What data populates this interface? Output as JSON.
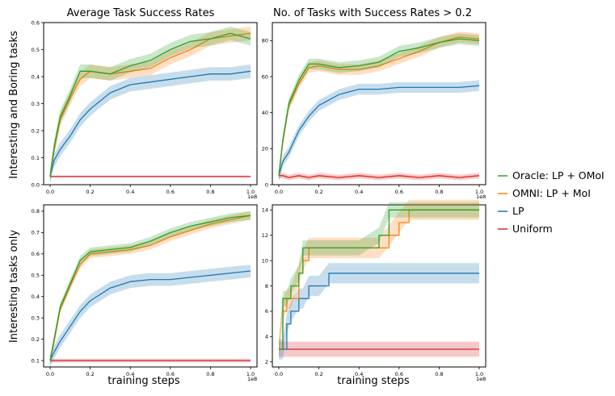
{
  "figure": {
    "column_titles": [
      "Average Task Success Rates",
      "No. of Tasks with Success Rates > 0.2"
    ],
    "row_labels": [
      "Interesting and Boring tasks",
      "Interesting tasks only"
    ],
    "xlabel": "training steps",
    "x_offset_label": "1e8"
  },
  "legend": [
    {
      "name": "Oracle: LP + OMoI",
      "color": "#2ca02c"
    },
    {
      "name": "OMNI: LP + MoI",
      "color": "#ff7f0e"
    },
    {
      "name": "LP",
      "color": "#1f77b4"
    },
    {
      "name": "Uniform",
      "color": "#d62728"
    }
  ],
  "chart_data": [
    {
      "type": "line",
      "title": "Average Task Success Rates",
      "row": "Interesting and Boring tasks",
      "xlim": [
        0,
        1.0
      ],
      "ylim": [
        0.0,
        0.6
      ],
      "xticks": [
        "0.0",
        "0.2",
        "0.4",
        "0.6",
        "0.8",
        "1.0"
      ],
      "yticks": [
        "0.0",
        "0.1",
        "0.2",
        "0.3",
        "0.4",
        "0.5",
        "0.6"
      ],
      "x": [
        0,
        0.02,
        0.05,
        0.1,
        0.15,
        0.2,
        0.3,
        0.4,
        0.5,
        0.6,
        0.7,
        0.8,
        0.9,
        1.0
      ],
      "series": [
        {
          "name": "Oracle: LP + OMoI",
          "color": "#2ca02c",
          "values": [
            0.03,
            0.14,
            0.25,
            0.33,
            0.42,
            0.42,
            0.41,
            0.44,
            0.46,
            0.5,
            0.53,
            0.54,
            0.56,
            0.54
          ],
          "band": 0.025
        },
        {
          "name": "OMNI: LP + MoI",
          "color": "#ff7f0e",
          "values": [
            0.03,
            0.13,
            0.24,
            0.32,
            0.39,
            0.42,
            0.41,
            0.42,
            0.43,
            0.47,
            0.5,
            0.54,
            0.55,
            0.56
          ],
          "band": 0.025
        },
        {
          "name": "LP",
          "color": "#1f77b4",
          "values": [
            0.03,
            0.09,
            0.13,
            0.18,
            0.24,
            0.28,
            0.34,
            0.37,
            0.38,
            0.39,
            0.4,
            0.41,
            0.41,
            0.42
          ],
          "band": 0.025
        },
        {
          "name": "Uniform",
          "color": "#d62728",
          "values": [
            0.03,
            0.03,
            0.03,
            0.03,
            0.03,
            0.03,
            0.03,
            0.03,
            0.03,
            0.03,
            0.03,
            0.03,
            0.03,
            0.03
          ],
          "band": 0.004
        }
      ]
    },
    {
      "type": "line",
      "title": "No. of Tasks with Success Rates > 0.2",
      "row": "Interesting and Boring tasks",
      "xlim": [
        0,
        1.0
      ],
      "ylim": [
        0,
        90
      ],
      "xticks": [
        "0.0",
        "0.2",
        "0.4",
        "0.6",
        "0.8",
        "1.0"
      ],
      "yticks": [
        "0",
        "20",
        "40",
        "60",
        "80"
      ],
      "x": [
        0,
        0.02,
        0.05,
        0.1,
        0.15,
        0.2,
        0.3,
        0.4,
        0.5,
        0.6,
        0.7,
        0.8,
        0.9,
        1.0
      ],
      "series": [
        {
          "name": "Oracle: LP + OMoI",
          "color": "#2ca02c",
          "values": [
            5,
            25,
            45,
            58,
            67,
            67,
            65,
            66,
            68,
            74,
            76,
            79,
            81,
            80
          ],
          "band": 3
        },
        {
          "name": "OMNI: LP + MoI",
          "color": "#ff7f0e",
          "values": [
            5,
            24,
            44,
            56,
            65,
            66,
            64,
            64,
            66,
            70,
            74,
            79,
            82,
            81
          ],
          "band": 3
        },
        {
          "name": "LP",
          "color": "#1f77b4",
          "values": [
            5,
            13,
            18,
            30,
            38,
            44,
            50,
            53,
            53,
            54,
            54,
            54,
            54,
            55
          ],
          "band": 3
        },
        {
          "name": "Uniform",
          "color": "#d62728",
          "values": [
            5,
            5,
            4,
            5,
            4,
            5,
            4,
            5,
            4,
            5,
            4,
            5,
            4,
            5
          ],
          "band": 1.5
        }
      ]
    },
    {
      "type": "line",
      "title": "",
      "row": "Interesting tasks only",
      "xlim": [
        0,
        1.0
      ],
      "ylim": [
        0.07,
        0.83
      ],
      "xticks": [
        "0.0",
        "0.2",
        "0.4",
        "0.6",
        "0.8",
        "1.0"
      ],
      "yticks": [
        "0.1",
        "0.2",
        "0.3",
        "0.4",
        "0.5",
        "0.6",
        "0.7",
        "0.8"
      ],
      "x": [
        0,
        0.02,
        0.05,
        0.1,
        0.15,
        0.2,
        0.3,
        0.4,
        0.5,
        0.6,
        0.7,
        0.8,
        0.9,
        1.0
      ],
      "series": [
        {
          "name": "Oracle: LP + OMoI",
          "color": "#2ca02c",
          "values": [
            0.1,
            0.2,
            0.35,
            0.46,
            0.57,
            0.61,
            0.62,
            0.63,
            0.66,
            0.7,
            0.73,
            0.75,
            0.77,
            0.78
          ],
          "band": 0.02
        },
        {
          "name": "OMNI: LP + MoI",
          "color": "#ff7f0e",
          "values": [
            0.1,
            0.19,
            0.34,
            0.45,
            0.55,
            0.6,
            0.61,
            0.62,
            0.64,
            0.68,
            0.71,
            0.74,
            0.76,
            0.78
          ],
          "band": 0.02
        },
        {
          "name": "LP",
          "color": "#1f77b4",
          "values": [
            0.1,
            0.14,
            0.19,
            0.26,
            0.33,
            0.38,
            0.44,
            0.47,
            0.48,
            0.48,
            0.49,
            0.5,
            0.51,
            0.52
          ],
          "band": 0.03
        },
        {
          "name": "Uniform",
          "color": "#d62728",
          "values": [
            0.1,
            0.1,
            0.1,
            0.1,
            0.1,
            0.1,
            0.1,
            0.1,
            0.1,
            0.1,
            0.1,
            0.1,
            0.1,
            0.1
          ],
          "band": 0.008
        }
      ]
    },
    {
      "type": "line",
      "title": "",
      "row": "Interesting tasks only",
      "xlim": [
        0,
        1.0
      ],
      "ylim": [
        1.6,
        14.4
      ],
      "xticks": [
        "0.0",
        "0.2",
        "0.4",
        "0.6",
        "0.8",
        "1.0"
      ],
      "yticks": [
        "2",
        "4",
        "6",
        "8",
        "10",
        "12",
        "14"
      ],
      "x": [
        0,
        0.02,
        0.04,
        0.06,
        0.1,
        0.12,
        0.15,
        0.2,
        0.25,
        0.3,
        0.4,
        0.5,
        0.55,
        0.6,
        0.65,
        0.7,
        0.8,
        0.9,
        1.0
      ],
      "series": [
        {
          "name": "Oracle: LP + OMoI",
          "color": "#2ca02c",
          "values": [
            3,
            7,
            7,
            8,
            9,
            11,
            11,
            11,
            11,
            11,
            11,
            12,
            14,
            14,
            14,
            14,
            14,
            14,
            14
          ],
          "band": 0.6
        },
        {
          "name": "OMNI: LP + MoI",
          "color": "#ff7f0e",
          "values": [
            3,
            6,
            7,
            7,
            9,
            10,
            11,
            11,
            11,
            11,
            11,
            11,
            12,
            13,
            14,
            14,
            14,
            14,
            14
          ],
          "band": 0.8
        },
        {
          "name": "LP",
          "color": "#1f77b4",
          "values": [
            3,
            3,
            5,
            6,
            7,
            7,
            8,
            8,
            9,
            9,
            9,
            9,
            9,
            9,
            9,
            9,
            9,
            9,
            9
          ],
          "band": 0.8
        },
        {
          "name": "Uniform",
          "color": "#d62728",
          "values": [
            3,
            3,
            3,
            3,
            3,
            3,
            3,
            3,
            3,
            3,
            3,
            3,
            3,
            3,
            3,
            3,
            3,
            3,
            3
          ],
          "band": 0.6
        }
      ]
    }
  ]
}
